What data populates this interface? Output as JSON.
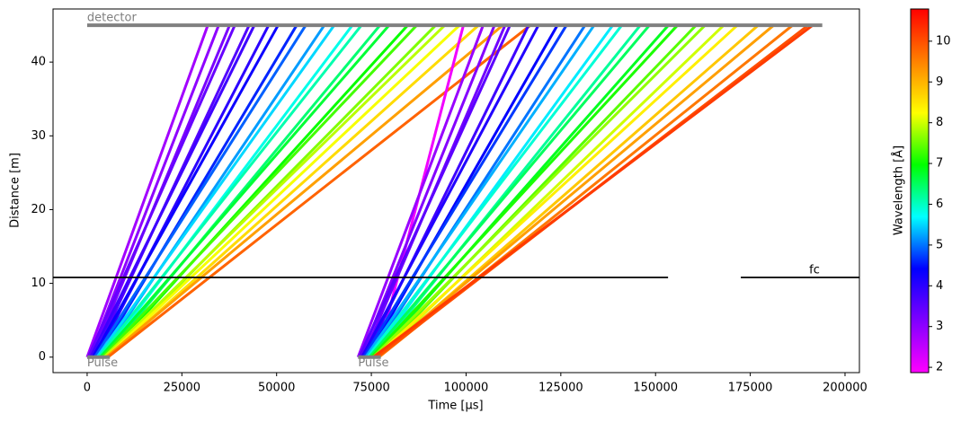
{
  "chart_data": {
    "type": "tof",
    "xlabel": "Time [µs]",
    "ylabel": "Distance [m]",
    "xlim": [
      -9000,
      203800
    ],
    "ylim": [
      -2.1,
      47.2
    ],
    "xticks": [
      0,
      25000,
      50000,
      75000,
      100000,
      125000,
      150000,
      175000,
      200000
    ],
    "yticks": [
      0,
      10,
      20,
      30,
      40
    ],
    "colorbar": {
      "label": "Wavelength [Å]",
      "clim": [
        1.87,
        10.79
      ],
      "ticks": [
        2,
        3,
        4,
        5,
        6,
        7,
        8,
        9,
        10
      ],
      "colormap": [
        "#ff00ff",
        "#8000ff",
        "#0000ff",
        "#00ffff",
        "#00ff00",
        "#ffff00",
        "#ff8000",
        "#ff0000"
      ]
    },
    "source_distance": 0,
    "detector": {
      "label": "detector",
      "distance": 45,
      "start": 0,
      "end": 194000,
      "color": "#808080"
    },
    "choppers": [
      {
        "label": "fc",
        "distance": 10.8,
        "closed": [
          [
            -9000,
            153300
          ],
          [
            172500,
            203800
          ]
        ],
        "color": "#000000"
      }
    ],
    "pulses": [
      {
        "label": "Pulse",
        "start": 0,
        "end": 6000,
        "color": "#808080",
        "rays": [
          {
            "t0": 0,
            "t1": 31850,
            "wavelength": 2.8
          },
          {
            "t0": 600,
            "t1": 34725,
            "wavelength": 3.0
          },
          {
            "t0": 1200,
            "t1": 37600,
            "wavelength": 3.2
          },
          {
            "t0": 300,
            "t1": 38975,
            "wavelength": 3.4
          },
          {
            "t0": 1800,
            "t1": 42750,
            "wavelength": 3.6
          },
          {
            "t0": 900,
            "t1": 44125,
            "wavelength": 3.8
          },
          {
            "t0": 2400,
            "t1": 47900,
            "wavelength": 4.0
          },
          {
            "t0": 1500,
            "t1": 50400,
            "wavelength": 4.3
          },
          {
            "t0": 3000,
            "t1": 55300,
            "wavelength": 4.6
          },
          {
            "t0": 2000,
            "t1": 57700,
            "wavelength": 4.9
          },
          {
            "t0": 3500,
            "t1": 62600,
            "wavelength": 5.2
          },
          {
            "t0": 2600,
            "t1": 65200,
            "wavelength": 5.5
          },
          {
            "t0": 4000,
            "t1": 70000,
            "wavelength": 5.8
          },
          {
            "t0": 3000,
            "t1": 72400,
            "wavelength": 6.1
          },
          {
            "t0": 4500,
            "t1": 77300,
            "wavelength": 6.4
          },
          {
            "t0": 3500,
            "t1": 79700,
            "wavelength": 6.7
          },
          {
            "t0": 5000,
            "t1": 84600,
            "wavelength": 7.0
          },
          {
            "t0": 4000,
            "t1": 87000,
            "wavelength": 7.3
          },
          {
            "t0": 5500,
            "t1": 92000,
            "wavelength": 7.6
          },
          {
            "t0": 4500,
            "t1": 94400,
            "wavelength": 7.9
          },
          {
            "t0": 5000,
            "t1": 98300,
            "wavelength": 8.2
          },
          {
            "t0": 5500,
            "t1": 103300,
            "wavelength": 8.6
          },
          {
            "t0": 5000,
            "t1": 109700,
            "wavelength": 9.2
          },
          {
            "t0": 5500,
            "t1": 117000,
            "wavelength": 9.8
          }
        ]
      },
      {
        "label": "Pulse",
        "start": 71500,
        "end": 77500,
        "color": "#808080",
        "rays": [
          {
            "t0": 76500,
            "t1": 99300,
            "wavelength": 2.0
          },
          {
            "t0": 71500,
            "t1": 104500,
            "wavelength": 2.9
          },
          {
            "t0": 72200,
            "t1": 107500,
            "wavelength": 3.1
          },
          {
            "t0": 72800,
            "t1": 110300,
            "wavelength": 3.3
          },
          {
            "t0": 71800,
            "t1": 111600,
            "wavelength": 3.5
          },
          {
            "t0": 73300,
            "t1": 116500,
            "wavelength": 3.8
          },
          {
            "t0": 72500,
            "t1": 119100,
            "wavelength": 4.1
          },
          {
            "t0": 74000,
            "t1": 124100,
            "wavelength": 4.4
          },
          {
            "t0": 73000,
            "t1": 126500,
            "wavelength": 4.7
          },
          {
            "t0": 74500,
            "t1": 131400,
            "wavelength": 5.0
          },
          {
            "t0": 73500,
            "t1": 133800,
            "wavelength": 5.3
          },
          {
            "t0": 75000,
            "t1": 138700,
            "wavelength": 5.6
          },
          {
            "t0": 74000,
            "t1": 141100,
            "wavelength": 5.9
          },
          {
            "t0": 75500,
            "t1": 146000,
            "wavelength": 6.2
          },
          {
            "t0": 74500,
            "t1": 148400,
            "wavelength": 6.5
          },
          {
            "t0": 76000,
            "t1": 153400,
            "wavelength": 6.8
          },
          {
            "t0": 75000,
            "t1": 155800,
            "wavelength": 7.1
          },
          {
            "t0": 76500,
            "t1": 160700,
            "wavelength": 7.4
          },
          {
            "t0": 75500,
            "t1": 163100,
            "wavelength": 7.7
          },
          {
            "t0": 77000,
            "t1": 168000,
            "wavelength": 8.0
          },
          {
            "t0": 76000,
            "t1": 171600,
            "wavelength": 8.4
          },
          {
            "t0": 77000,
            "t1": 177100,
            "wavelength": 8.8
          },
          {
            "t0": 76500,
            "t1": 181200,
            "wavelength": 9.2
          },
          {
            "t0": 77000,
            "t1": 186200,
            "wavelength": 9.6
          },
          {
            "t0": 76500,
            "t1": 190300,
            "wavelength": 10.0
          },
          {
            "t0": 75500,
            "t1": 191500,
            "wavelength": 10.2
          }
        ]
      }
    ]
  }
}
